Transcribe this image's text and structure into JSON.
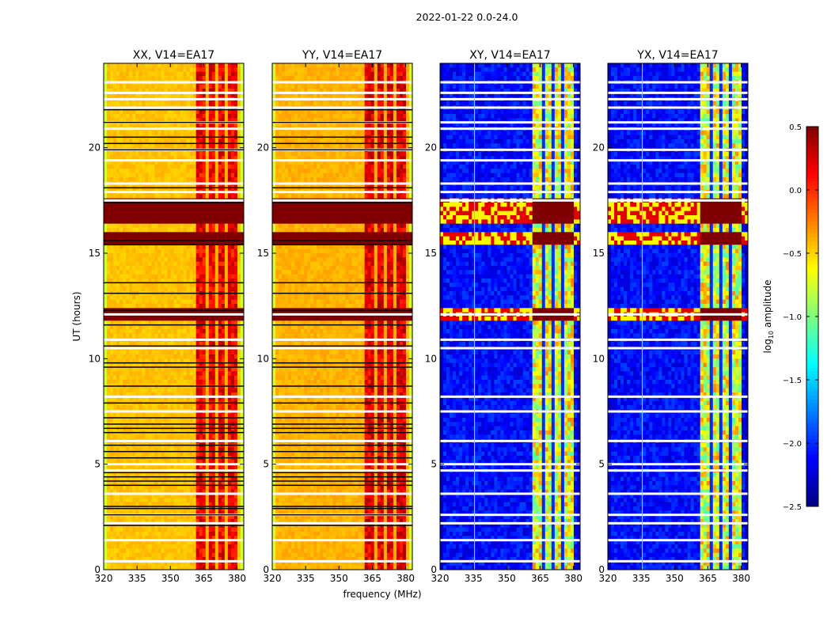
{
  "chart_data": {
    "type": "heatmap",
    "suptitle": "2022-01-22 0.0-24.0",
    "xlabel": "frequency (MHz)",
    "ylabel": "UT (hours)",
    "xlim": [
      320,
      383
    ],
    "ylim": [
      0,
      24
    ],
    "xticks": [
      320,
      335,
      350,
      365,
      380
    ],
    "yticks": [
      0,
      5,
      10,
      15,
      20
    ],
    "grid": false,
    "panels": [
      {
        "title": "XX, V14=EA17",
        "colormap": "hot_like",
        "base_level": -0.45,
        "band_level": 0.15,
        "edge_level": -0.75
      },
      {
        "title": "YY, V14=EA17",
        "colormap": "hot_like",
        "base_level": -0.4,
        "band_level": 0.2,
        "edge_level": -0.75
      },
      {
        "title": "XY, V14=EA17",
        "colormap": "jet",
        "base_level": -2.1,
        "band_level": -0.7,
        "edge_level": -2.3
      },
      {
        "title": "YX, V14=EA17",
        "colormap": "jet",
        "base_level": -2.1,
        "band_level": -0.7,
        "edge_level": -2.3
      }
    ],
    "rfi_band_mhz": [
      362,
      380
    ],
    "flagged_hours_white": [
      23.1,
      22.6,
      22.3,
      21.9,
      21.2,
      20.9,
      19.9,
      19.4,
      18.3,
      17.9,
      17.5,
      12.1,
      10.9,
      10.5,
      8.2,
      7.5,
      6.1,
      5.0,
      4.7,
      3.6,
      2.6,
      2.2,
      1.4,
      0.4
    ],
    "flagged_hours_black": [
      21.8,
      21.2,
      20.5,
      20.2,
      19.9,
      18.1,
      17.4,
      15.6,
      15.4,
      13.6,
      13.1,
      12.3,
      11.6,
      10.6,
      9.8,
      9.6,
      8.7,
      7.9,
      7.2,
      6.9,
      6.7,
      6.5,
      5.9,
      5.6,
      5.3,
      4.6,
      4.4,
      4.2,
      4.0,
      3.0,
      2.9,
      2.6,
      2.1
    ],
    "high_rows_hours": [
      [
        15.5,
        15.9
      ],
      [
        11.8,
        12.4
      ],
      [
        16.3,
        17.6
      ]
    ],
    "colorbar": {
      "label": "log10 amplitude",
      "label_main": "log",
      "label_sub": "10",
      "label_rest": " amplitude",
      "range": [
        -2.5,
        0.5
      ],
      "ticks": [
        0.5,
        0.0,
        -0.5,
        -1.0,
        -1.5,
        -2.0,
        -2.5
      ],
      "tick_labels": [
        "0.5",
        "0.0",
        "−0.5",
        "−1.0",
        "−1.5",
        "−2.0",
        "−2.5"
      ],
      "colormap": "jet"
    }
  }
}
